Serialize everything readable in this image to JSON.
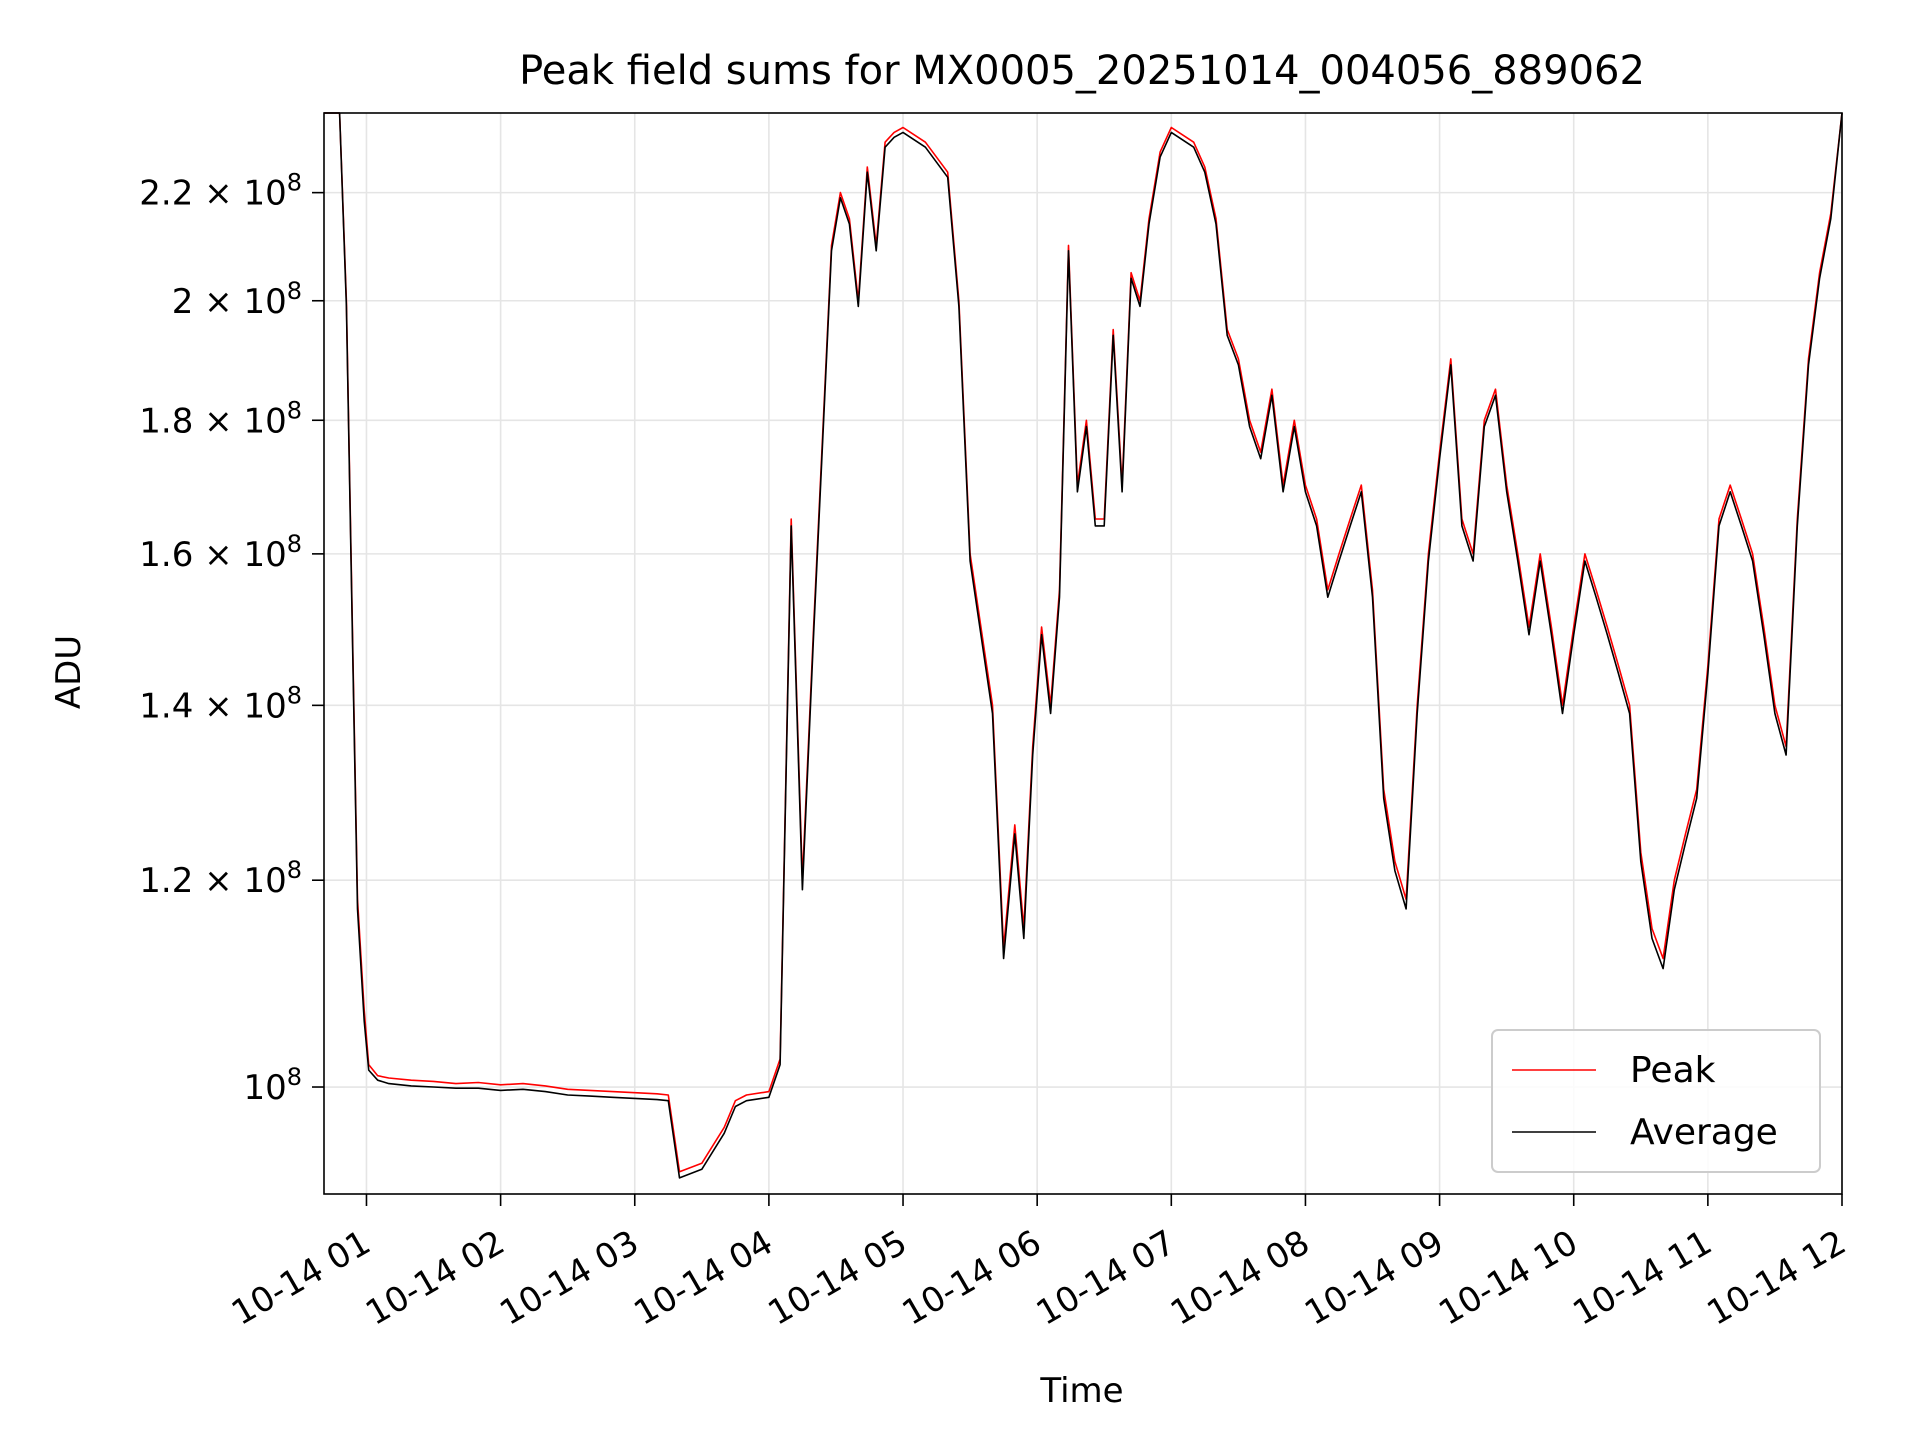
{
  "chart_data": {
    "type": "line",
    "title": "Peak field sums for MX0005_20251014_004056_889062",
    "xlabel": "Time",
    "ylabel": "ADU",
    "y_scale": "log",
    "ylim": [
      91000000,
      236000000
    ],
    "x_range_hours": [
      "2025-10-14 00:41",
      "2025-10-14 12:00"
    ],
    "x_ticks": [
      {
        "t": "2025-10-14 01:00",
        "label": "10-14 01"
      },
      {
        "t": "2025-10-14 02:00",
        "label": "10-14 02"
      },
      {
        "t": "2025-10-14 03:00",
        "label": "10-14 03"
      },
      {
        "t": "2025-10-14 04:00",
        "label": "10-14 04"
      },
      {
        "t": "2025-10-14 05:00",
        "label": "10-14 05"
      },
      {
        "t": "2025-10-14 06:00",
        "label": "10-14 06"
      },
      {
        "t": "2025-10-14 07:00",
        "label": "10-14 07"
      },
      {
        "t": "2025-10-14 08:00",
        "label": "10-14 08"
      },
      {
        "t": "2025-10-14 09:00",
        "label": "10-14 09"
      },
      {
        "t": "2025-10-14 10:00",
        "label": "10-14 10"
      },
      {
        "t": "2025-10-14 11:00",
        "label": "10-14 11"
      },
      {
        "t": "2025-10-14 12:00",
        "label": "10-14 12"
      }
    ],
    "y_ticks": [
      {
        "value": 100000000,
        "mantissa": "",
        "exponent": "8"
      },
      {
        "value": 120000000,
        "mantissa": "1.2",
        "exponent": "8"
      },
      {
        "value": 140000000,
        "mantissa": "1.4",
        "exponent": "8"
      },
      {
        "value": 160000000,
        "mantissa": "1.6",
        "exponent": "8"
      },
      {
        "value": 180000000,
        "mantissa": "1.8",
        "exponent": "8"
      },
      {
        "value": 200000000,
        "mantissa": "2",
        "exponent": "8"
      },
      {
        "value": 220000000,
        "mantissa": "2.2",
        "exponent": "8"
      }
    ],
    "grid": true,
    "legend_position": "bottom-right",
    "series": [
      {
        "name": "Peak",
        "color": "#ff0000",
        "x": [
          "2025-10-14 00:41",
          "2025-10-14 00:48",
          "2025-10-14 00:51",
          "2025-10-14 00:54",
          "2025-10-14 00:56",
          "2025-10-14 00:59",
          "2025-10-14 01:01",
          "2025-10-14 01:05",
          "2025-10-14 01:10",
          "2025-10-14 01:20",
          "2025-10-14 01:30",
          "2025-10-14 01:40",
          "2025-10-14 01:50",
          "2025-10-14 02:00",
          "2025-10-14 02:10",
          "2025-10-14 02:20",
          "2025-10-14 02:30",
          "2025-10-14 02:40",
          "2025-10-14 02:50",
          "2025-10-14 03:00",
          "2025-10-14 03:10",
          "2025-10-14 03:15",
          "2025-10-14 03:20",
          "2025-10-14 03:30",
          "2025-10-14 03:40",
          "2025-10-14 03:45",
          "2025-10-14 03:50",
          "2025-10-14 04:00",
          "2025-10-14 04:05",
          "2025-10-14 04:10",
          "2025-10-14 04:15",
          "2025-10-14 04:20",
          "2025-10-14 04:25",
          "2025-10-14 04:28",
          "2025-10-14 04:32",
          "2025-10-14 04:36",
          "2025-10-14 04:40",
          "2025-10-14 04:44",
          "2025-10-14 04:48",
          "2025-10-14 04:52",
          "2025-10-14 04:56",
          "2025-10-14 05:00",
          "2025-10-14 05:10",
          "2025-10-14 05:20",
          "2025-10-14 05:25",
          "2025-10-14 05:30",
          "2025-10-14 05:40",
          "2025-10-14 05:45",
          "2025-10-14 05:50",
          "2025-10-14 05:54",
          "2025-10-14 05:58",
          "2025-10-14 06:02",
          "2025-10-14 06:06",
          "2025-10-14 06:10",
          "2025-10-14 06:14",
          "2025-10-14 06:18",
          "2025-10-14 06:22",
          "2025-10-14 06:26",
          "2025-10-14 06:30",
          "2025-10-14 06:34",
          "2025-10-14 06:38",
          "2025-10-14 06:42",
          "2025-10-14 06:46",
          "2025-10-14 06:50",
          "2025-10-14 06:55",
          "2025-10-14 07:00",
          "2025-10-14 07:10",
          "2025-10-14 07:15",
          "2025-10-14 07:20",
          "2025-10-14 07:25",
          "2025-10-14 07:30",
          "2025-10-14 07:35",
          "2025-10-14 07:40",
          "2025-10-14 07:45",
          "2025-10-14 07:50",
          "2025-10-14 07:55",
          "2025-10-14 08:00",
          "2025-10-14 08:05",
          "2025-10-14 08:10",
          "2025-10-14 08:15",
          "2025-10-14 08:20",
          "2025-10-14 08:25",
          "2025-10-14 08:30",
          "2025-10-14 08:35",
          "2025-10-14 08:40",
          "2025-10-14 08:45",
          "2025-10-14 08:50",
          "2025-10-14 08:55",
          "2025-10-14 09:00",
          "2025-10-14 09:05",
          "2025-10-14 09:10",
          "2025-10-14 09:15",
          "2025-10-14 09:20",
          "2025-10-14 09:25",
          "2025-10-14 09:30",
          "2025-10-14 09:35",
          "2025-10-14 09:40",
          "2025-10-14 09:45",
          "2025-10-14 09:50",
          "2025-10-14 09:55",
          "2025-10-14 10:00",
          "2025-10-14 10:05",
          "2025-10-14 10:10",
          "2025-10-14 10:15",
          "2025-10-14 10:20",
          "2025-10-14 10:25",
          "2025-10-14 10:30",
          "2025-10-14 10:35",
          "2025-10-14 10:40",
          "2025-10-14 10:45",
          "2025-10-14 10:50",
          "2025-10-14 10:55",
          "2025-10-14 11:00",
          "2025-10-14 11:05",
          "2025-10-14 11:10",
          "2025-10-14 11:15",
          "2025-10-14 11:20",
          "2025-10-14 11:25",
          "2025-10-14 11:30",
          "2025-10-14 11:35",
          "2025-10-14 11:40",
          "2025-10-14 11:45",
          "2025-10-14 11:50",
          "2025-10-14 11:55",
          "2025-10-14 12:00"
        ],
        "values": [
          236000000,
          236000000,
          200000000,
          145000000,
          118000000,
          107000000,
          102000000,
          101000000,
          100800000,
          100600000,
          100500000,
          100300000,
          100400000,
          100200000,
          100300000,
          100100000,
          99800000,
          99700000,
          99600000,
          99500000,
          99400000,
          99300000,
          92800000,
          93500000,
          96500000,
          98800000,
          99300000,
          99600000,
          102500000,
          165000000,
          120000000,
          150000000,
          185000000,
          210000000,
          220000000,
          215000000,
          200000000,
          225000000,
          210000000,
          230000000,
          232000000,
          233000000,
          230000000,
          224000000,
          200000000,
          160000000,
          140000000,
          113000000,
          126000000,
          115000000,
          135000000,
          150000000,
          140000000,
          155000000,
          210000000,
          170000000,
          180000000,
          165000000,
          165000000,
          195000000,
          170000000,
          205000000,
          200000000,
          215000000,
          228000000,
          233000000,
          230000000,
          225000000,
          215000000,
          195000000,
          190000000,
          180000000,
          175000000,
          185000000,
          170000000,
          180000000,
          170000000,
          165000000,
          155000000,
          160000000,
          165000000,
          170000000,
          155000000,
          130000000,
          122000000,
          118000000,
          140000000,
          160000000,
          175000000,
          190000000,
          165000000,
          160000000,
          180000000,
          185000000,
          170000000,
          160000000,
          150000000,
          160000000,
          150000000,
          140000000,
          150000000,
          160000000,
          155000000,
          150000000,
          145000000,
          140000000,
          123000000,
          115000000,
          112000000,
          120000000,
          125000000,
          130000000,
          145000000,
          165000000,
          170000000,
          165000000,
          160000000,
          150000000,
          140000000,
          135000000,
          165000000,
          190000000,
          205000000,
          216000000,
          236000000
        ]
      },
      {
        "name": "Average",
        "color": "#000000",
        "x": [
          "2025-10-14 00:41",
          "2025-10-14 00:48",
          "2025-10-14 00:51",
          "2025-10-14 00:54",
          "2025-10-14 00:56",
          "2025-10-14 00:59",
          "2025-10-14 01:01",
          "2025-10-14 01:05",
          "2025-10-14 01:10",
          "2025-10-14 01:20",
          "2025-10-14 01:30",
          "2025-10-14 01:40",
          "2025-10-14 01:50",
          "2025-10-14 02:00",
          "2025-10-14 02:10",
          "2025-10-14 02:20",
          "2025-10-14 02:30",
          "2025-10-14 02:40",
          "2025-10-14 02:50",
          "2025-10-14 03:00",
          "2025-10-14 03:10",
          "2025-10-14 03:15",
          "2025-10-14 03:20",
          "2025-10-14 03:30",
          "2025-10-14 03:40",
          "2025-10-14 03:45",
          "2025-10-14 03:50",
          "2025-10-14 04:00",
          "2025-10-14 04:05",
          "2025-10-14 04:10",
          "2025-10-14 04:15",
          "2025-10-14 04:20",
          "2025-10-14 04:25",
          "2025-10-14 04:28",
          "2025-10-14 04:32",
          "2025-10-14 04:36",
          "2025-10-14 04:40",
          "2025-10-14 04:44",
          "2025-10-14 04:48",
          "2025-10-14 04:52",
          "2025-10-14 04:56",
          "2025-10-14 05:00",
          "2025-10-14 05:10",
          "2025-10-14 05:20",
          "2025-10-14 05:25",
          "2025-10-14 05:30",
          "2025-10-14 05:40",
          "2025-10-14 05:45",
          "2025-10-14 05:50",
          "2025-10-14 05:54",
          "2025-10-14 05:58",
          "2025-10-14 06:02",
          "2025-10-14 06:06",
          "2025-10-14 06:10",
          "2025-10-14 06:14",
          "2025-10-14 06:18",
          "2025-10-14 06:22",
          "2025-10-14 06:26",
          "2025-10-14 06:30",
          "2025-10-14 06:34",
          "2025-10-14 06:38",
          "2025-10-14 06:42",
          "2025-10-14 06:46",
          "2025-10-14 06:50",
          "2025-10-14 06:55",
          "2025-10-14 07:00",
          "2025-10-14 07:10",
          "2025-10-14 07:15",
          "2025-10-14 07:20",
          "2025-10-14 07:25",
          "2025-10-14 07:30",
          "2025-10-14 07:35",
          "2025-10-14 07:40",
          "2025-10-14 07:45",
          "2025-10-14 07:50",
          "2025-10-14 07:55",
          "2025-10-14 08:00",
          "2025-10-14 08:05",
          "2025-10-14 08:10",
          "2025-10-14 08:15",
          "2025-10-14 08:20",
          "2025-10-14 08:25",
          "2025-10-14 08:30",
          "2025-10-14 08:35",
          "2025-10-14 08:40",
          "2025-10-14 08:45",
          "2025-10-14 08:50",
          "2025-10-14 08:55",
          "2025-10-14 09:00",
          "2025-10-14 09:05",
          "2025-10-14 09:10",
          "2025-10-14 09:15",
          "2025-10-14 09:20",
          "2025-10-14 09:25",
          "2025-10-14 09:30",
          "2025-10-14 09:35",
          "2025-10-14 09:40",
          "2025-10-14 09:45",
          "2025-10-14 09:50",
          "2025-10-14 09:55",
          "2025-10-14 10:00",
          "2025-10-14 10:05",
          "2025-10-14 10:10",
          "2025-10-14 10:15",
          "2025-10-14 10:20",
          "2025-10-14 10:25",
          "2025-10-14 10:30",
          "2025-10-14 10:35",
          "2025-10-14 10:40",
          "2025-10-14 10:45",
          "2025-10-14 10:50",
          "2025-10-14 10:55",
          "2025-10-14 11:00",
          "2025-10-14 11:05",
          "2025-10-14 11:10",
          "2025-10-14 11:15",
          "2025-10-14 11:20",
          "2025-10-14 11:25",
          "2025-10-14 11:30",
          "2025-10-14 11:35",
          "2025-10-14 11:40",
          "2025-10-14 11:45",
          "2025-10-14 11:50",
          "2025-10-14 11:55",
          "2025-10-14 12:00"
        ],
        "values": [
          236000000,
          236000000,
          199000000,
          144000000,
          117000000,
          106000000,
          101500000,
          100600000,
          100300000,
          100100000,
          100000000,
          99900000,
          99900000,
          99700000,
          99800000,
          99600000,
          99300000,
          99200000,
          99100000,
          99000000,
          98900000,
          98800000,
          92300000,
          93000000,
          96000000,
          98300000,
          98800000,
          99100000,
          102000000,
          164000000,
          119000000,
          149000000,
          184000000,
          209000000,
          219000000,
          214000000,
          199000000,
          224000000,
          209000000,
          229000000,
          231000000,
          232000000,
          229000000,
          223000000,
          199000000,
          159000000,
          139000000,
          112000000,
          125000000,
          114000000,
          134000000,
          149000000,
          139000000,
          154000000,
          209000000,
          169000000,
          179000000,
          164000000,
          164000000,
          194000000,
          169000000,
          204000000,
          199000000,
          214000000,
          227000000,
          232000000,
          229000000,
          224000000,
          214000000,
          194000000,
          189000000,
          179000000,
          174000000,
          184000000,
          169000000,
          179000000,
          169000000,
          164000000,
          154000000,
          159000000,
          164000000,
          169000000,
          154000000,
          129000000,
          121000000,
          117000000,
          139000000,
          159000000,
          174000000,
          189000000,
          164000000,
          159000000,
          179000000,
          184000000,
          169000000,
          159000000,
          149000000,
          159000000,
          149000000,
          139000000,
          149000000,
          159000000,
          154000000,
          149000000,
          144000000,
          139000000,
          122000000,
          114000000,
          111000000,
          119000000,
          124000000,
          129000000,
          144000000,
          164000000,
          169000000,
          164000000,
          159000000,
          149000000,
          139000000,
          134000000,
          164000000,
          189000000,
          204000000,
          215000000,
          236000000
        ]
      }
    ]
  }
}
